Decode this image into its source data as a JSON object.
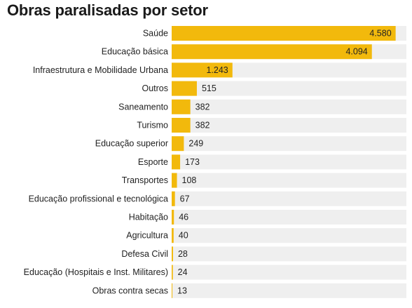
{
  "chart_data": {
    "type": "bar",
    "orientation": "horizontal",
    "title": "Obras paralisadas por setor",
    "categories": [
      "Saúde",
      "Educação básica",
      "Infraestrutura e Mobilidade Urbana",
      "Outros",
      "Saneamento",
      "Turismo",
      "Educação superior",
      "Esporte",
      "Transportes",
      "Educação profissional e tecnológica",
      "Habitação",
      "Agricultura",
      "Defesa Civil",
      "Educação (Hospitais e Inst. Militares)",
      "Obras contra secas"
    ],
    "values": [
      4580,
      4094,
      1243,
      515,
      382,
      382,
      249,
      173,
      108,
      67,
      46,
      40,
      28,
      24,
      13
    ],
    "value_labels": [
      "4.580",
      "4.094",
      "1.243",
      "515",
      "382",
      "382",
      "249",
      "173",
      "108",
      "67",
      "46",
      "40",
      "28",
      "24",
      "13"
    ],
    "xlim": [
      0,
      4800
    ],
    "grid": false,
    "colors": {
      "bar": "#f2b90c",
      "track": "#efefef",
      "text": "#222222"
    }
  }
}
